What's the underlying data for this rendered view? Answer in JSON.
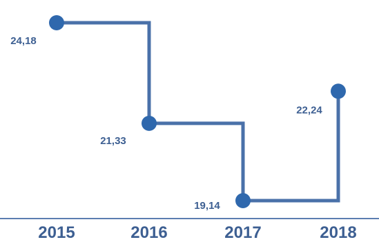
{
  "chart_data": {
    "type": "line",
    "step": true,
    "categories": [
      "2015",
      "2016",
      "2017",
      "2018"
    ],
    "values": [
      24.18,
      21.33,
      19.14,
      22.24
    ],
    "value_labels": [
      "24,18",
      "21,33",
      "19,14",
      "22,24"
    ],
    "title": "",
    "xlabel": "",
    "ylabel": "",
    "ylim": [
      19.14,
      24.18
    ],
    "grid": false,
    "legend": "none",
    "line_color": "#4a71a9",
    "point_color": "#2f68ad",
    "label_color": "#3d5f92",
    "axis_color": "#5b7db0"
  }
}
